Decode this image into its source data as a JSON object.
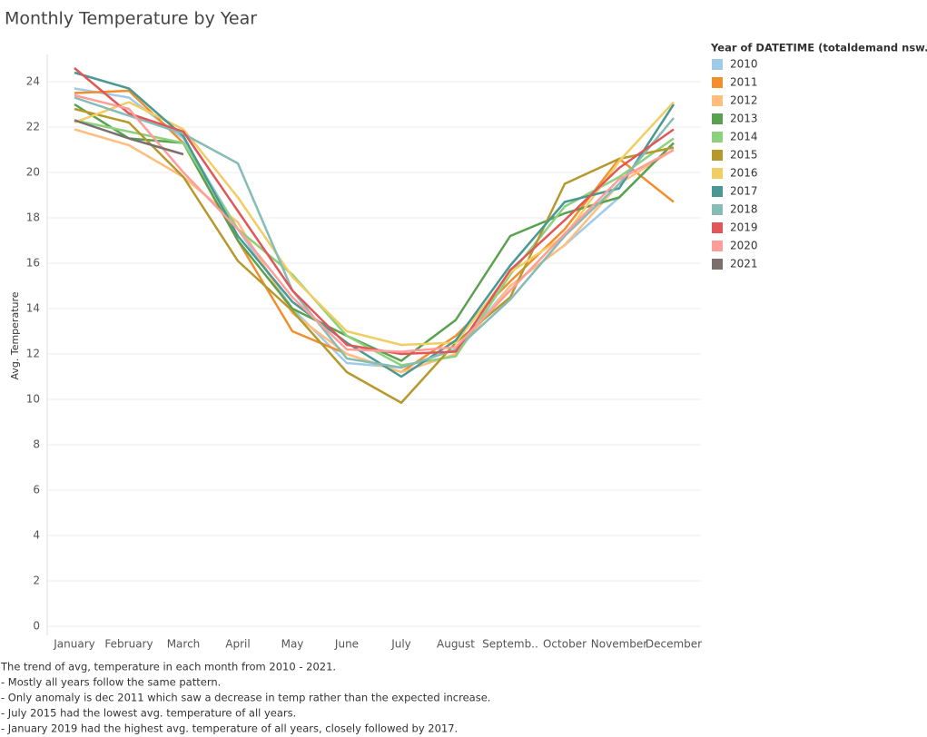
{
  "chart_data": {
    "type": "line",
    "title": "Monthly Temperature by Year",
    "y_label": "Avg. Temperature",
    "legend_title": "Year of DATETIME (totaldemand nsw.csv)",
    "legend_position": "right",
    "grid": true,
    "categories": [
      "January",
      "February",
      "March",
      "April",
      "May",
      "June",
      "July",
      "August",
      "Septemb..",
      "October",
      "November",
      "December"
    ],
    "ylim": [
      -0.4,
      25.2
    ],
    "yticks": [
      0,
      2,
      4,
      6,
      8,
      10,
      12,
      14,
      16,
      18,
      20,
      22,
      24
    ],
    "series": [
      {
        "name": "2010",
        "color": "#a0cbe8",
        "values": [
          23.7,
          23.3,
          21.5,
          17.5,
          14.0,
          11.6,
          11.4,
          12.2,
          15.0,
          16.8,
          18.9,
          21.3
        ]
      },
      {
        "name": "2011",
        "color": "#f28e2b",
        "values": [
          23.5,
          23.6,
          21.3,
          17.0,
          13.0,
          12.0,
          11.2,
          12.8,
          15.2,
          17.5,
          20.6,
          18.7
        ]
      },
      {
        "name": "2012",
        "color": "#ffbe7d",
        "values": [
          21.9,
          21.2,
          19.8,
          17.8,
          13.8,
          12.0,
          11.2,
          12.0,
          15.0,
          16.8,
          19.5,
          21.0
        ]
      },
      {
        "name": "2013",
        "color": "#59a14f",
        "values": [
          23.0,
          21.5,
          21.3,
          17.0,
          14.0,
          12.8,
          11.7,
          13.5,
          17.2,
          18.2,
          18.9,
          21.3
        ]
      },
      {
        "name": "2014",
        "color": "#8cd17d",
        "values": [
          22.3,
          21.8,
          21.3,
          17.5,
          15.5,
          12.8,
          11.5,
          11.9,
          15.5,
          18.5,
          19.8,
          21.5
        ]
      },
      {
        "name": "2015",
        "color": "#b6992d",
        "values": [
          22.8,
          22.2,
          19.8,
          16.1,
          13.9,
          11.2,
          9.85,
          12.5,
          14.5,
          19.5,
          20.6,
          21.1
        ]
      },
      {
        "name": "2016",
        "color": "#f1ce63",
        "values": [
          22.2,
          23.1,
          21.9,
          18.9,
          15.4,
          13.0,
          12.4,
          12.5,
          15.6,
          17.2,
          20.5,
          23.1
        ]
      },
      {
        "name": "2017",
        "color": "#499894",
        "values": [
          24.4,
          23.7,
          21.6,
          17.2,
          14.3,
          12.5,
          11.0,
          12.6,
          15.9,
          18.7,
          19.3,
          23.0
        ]
      },
      {
        "name": "2018",
        "color": "#86bcb6",
        "values": [
          23.3,
          22.5,
          21.7,
          20.4,
          14.8,
          11.8,
          11.4,
          12.2,
          14.4,
          17.2,
          19.5,
          22.4
        ]
      },
      {
        "name": "2019",
        "color": "#e15759",
        "values": [
          24.6,
          22.6,
          21.8,
          18.3,
          14.8,
          12.4,
          12.0,
          12.1,
          15.7,
          17.9,
          20.2,
          21.9
        ]
      },
      {
        "name": "2020",
        "color": "#ff9d9a",
        "values": [
          23.4,
          22.8,
          20.0,
          17.5,
          14.5,
          12.2,
          12.1,
          12.3,
          14.8,
          17.3,
          19.7,
          21.0
        ]
      },
      {
        "name": "2021",
        "color": "#79706e",
        "values": [
          22.3,
          21.5,
          20.8,
          null,
          null,
          null,
          null,
          null,
          null,
          null,
          null,
          null
        ]
      }
    ],
    "annotations": [
      "The trend of avg, temperature in each month from 2010 - 2021.",
      "- Mostly all years follow the same pattern.",
      "- Only anomaly is dec 2011 which saw a decrease in temp rather than the expected increase.",
      "- July 2015 had the lowest avg. temperature of all years.",
      "- January 2019 had the highest avg. temperature of all years, closely followed by 2017."
    ]
  }
}
